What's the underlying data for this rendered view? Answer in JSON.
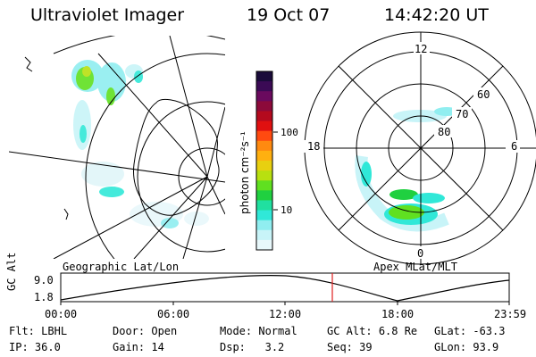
{
  "header": {
    "instrument": "Ultraviolet Imager",
    "date": "19 Oct 07",
    "time": "14:42:20 UT"
  },
  "colorbar": {
    "unit_label": "photon cm⁻²s⁻¹",
    "ticks": [
      "100",
      "10"
    ],
    "colors": [
      "#1a0b3a",
      "#3b0a55",
      "#6a0a5e",
      "#8c0a3a",
      "#b40a1e",
      "#e01010",
      "#ff4a10",
      "#ff8a10",
      "#ffb010",
      "#e8d010",
      "#b8e010",
      "#60e020",
      "#20d040",
      "#20e0a0",
      "#30e8d8",
      "#90eef0",
      "#c8f4f8",
      "#e8f8fb"
    ]
  },
  "panels": {
    "left_label": "Geographic Lat/Lon",
    "right_label": "Apex MLat/MLT"
  },
  "polar": {
    "mlt_labels": [
      "12",
      "18",
      "6",
      "0"
    ],
    "lat_labels": [
      "60",
      "70",
      "80"
    ]
  },
  "timeline": {
    "axis_label": "GC Alt",
    "y_ticks": [
      "9.0",
      "1.8"
    ],
    "x_ticks": [
      "00:00",
      "06:00",
      "12:00",
      "18:00",
      "23:59"
    ]
  },
  "status": {
    "row1": [
      {
        "label": "Flt:",
        "value": "LBHL"
      },
      {
        "label": "Door:",
        "value": "Open"
      },
      {
        "label": "Mode:",
        "value": "Normal"
      },
      {
        "label": "GC Alt:",
        "value": "6.8 Re"
      },
      {
        "label": "GLat:",
        "value": "-63.3"
      }
    ],
    "row2": [
      {
        "label": "IP:",
        "value": "36.0"
      },
      {
        "label": "Gain:",
        "value": "14"
      },
      {
        "label": "Dsp:",
        "value": "3.2"
      },
      {
        "label": "Seq:",
        "value": "39"
      },
      {
        "label": "GLon:",
        "value": "93.9"
      }
    ]
  }
}
